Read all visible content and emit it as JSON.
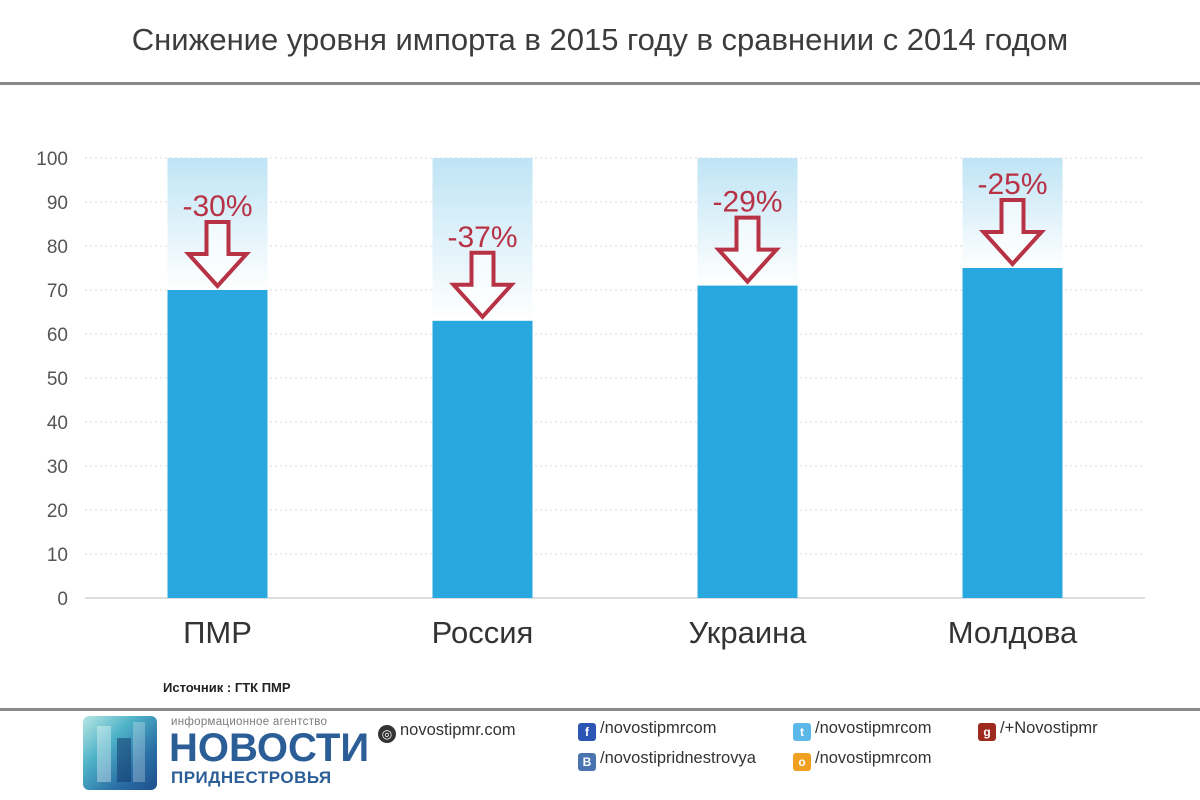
{
  "title": "Снижение уровня импорта в 2015 году в сравнении с 2014 годом",
  "source": "Источник : ГТК ПМР",
  "chart_data": {
    "type": "bar",
    "categories": [
      "ПМР",
      "Россия",
      "Украина",
      "Молдова"
    ],
    "values": [
      70,
      63,
      71,
      75
    ],
    "baseline": 100,
    "labels": [
      "-30%",
      "-37%",
      "-29%",
      "-25%"
    ],
    "ylim": [
      0,
      100
    ],
    "yticks": [
      0,
      10,
      20,
      30,
      40,
      50,
      60,
      70,
      80,
      90,
      100
    ],
    "grid": true,
    "colors": {
      "bar": "#29a8e0",
      "baseline_top": "#bfe4f5",
      "arrow": "#b83245",
      "label": "#b83245"
    }
  },
  "footer": {
    "logo_tagline": "информационное агентство",
    "logo_name": "НОВОСТИ",
    "logo_sub": "ПРИДНЕСТРОВЬЯ",
    "links": {
      "site": "novostipmr.com",
      "facebook": "/novostipmrcom",
      "twitter": "/novostipmrcom",
      "gplus": "/+Novostipmr",
      "vk": "/novostipridnestrovya",
      "ok": "/novostipmrcom"
    },
    "icons": {
      "site": "globe-icon",
      "facebook": "facebook-icon",
      "twitter": "twitter-icon",
      "gplus": "google-plus-icon",
      "vk": "vk-icon",
      "ok": "odnoklassniki-icon"
    }
  }
}
